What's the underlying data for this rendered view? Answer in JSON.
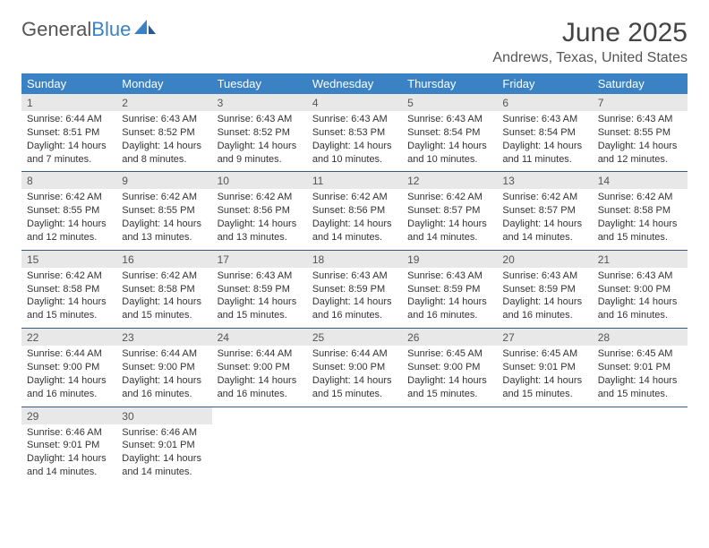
{
  "logo": {
    "text1": "General",
    "text2": "Blue"
  },
  "title": "June 2025",
  "location": "Andrews, Texas, United States",
  "colors": {
    "header_bg": "#3b82c4",
    "header_fg": "#ffffff",
    "daynum_bg": "#e8e8e8",
    "daynum_fg": "#555555",
    "sep": "#3b5a7a",
    "text": "#333333"
  },
  "dow": [
    "Sunday",
    "Monday",
    "Tuesday",
    "Wednesday",
    "Thursday",
    "Friday",
    "Saturday"
  ],
  "weeks": [
    {
      "days": [
        {
          "n": "1",
          "sr": "Sunrise: 6:44 AM",
          "ss": "Sunset: 8:51 PM",
          "d1": "Daylight: 14 hours",
          "d2": "and 7 minutes."
        },
        {
          "n": "2",
          "sr": "Sunrise: 6:43 AM",
          "ss": "Sunset: 8:52 PM",
          "d1": "Daylight: 14 hours",
          "d2": "and 8 minutes."
        },
        {
          "n": "3",
          "sr": "Sunrise: 6:43 AM",
          "ss": "Sunset: 8:52 PM",
          "d1": "Daylight: 14 hours",
          "d2": "and 9 minutes."
        },
        {
          "n": "4",
          "sr": "Sunrise: 6:43 AM",
          "ss": "Sunset: 8:53 PM",
          "d1": "Daylight: 14 hours",
          "d2": "and 10 minutes."
        },
        {
          "n": "5",
          "sr": "Sunrise: 6:43 AM",
          "ss": "Sunset: 8:54 PM",
          "d1": "Daylight: 14 hours",
          "d2": "and 10 minutes."
        },
        {
          "n": "6",
          "sr": "Sunrise: 6:43 AM",
          "ss": "Sunset: 8:54 PM",
          "d1": "Daylight: 14 hours",
          "d2": "and 11 minutes."
        },
        {
          "n": "7",
          "sr": "Sunrise: 6:43 AM",
          "ss": "Sunset: 8:55 PM",
          "d1": "Daylight: 14 hours",
          "d2": "and 12 minutes."
        }
      ]
    },
    {
      "days": [
        {
          "n": "8",
          "sr": "Sunrise: 6:42 AM",
          "ss": "Sunset: 8:55 PM",
          "d1": "Daylight: 14 hours",
          "d2": "and 12 minutes."
        },
        {
          "n": "9",
          "sr": "Sunrise: 6:42 AM",
          "ss": "Sunset: 8:55 PM",
          "d1": "Daylight: 14 hours",
          "d2": "and 13 minutes."
        },
        {
          "n": "10",
          "sr": "Sunrise: 6:42 AM",
          "ss": "Sunset: 8:56 PM",
          "d1": "Daylight: 14 hours",
          "d2": "and 13 minutes."
        },
        {
          "n": "11",
          "sr": "Sunrise: 6:42 AM",
          "ss": "Sunset: 8:56 PM",
          "d1": "Daylight: 14 hours",
          "d2": "and 14 minutes."
        },
        {
          "n": "12",
          "sr": "Sunrise: 6:42 AM",
          "ss": "Sunset: 8:57 PM",
          "d1": "Daylight: 14 hours",
          "d2": "and 14 minutes."
        },
        {
          "n": "13",
          "sr": "Sunrise: 6:42 AM",
          "ss": "Sunset: 8:57 PM",
          "d1": "Daylight: 14 hours",
          "d2": "and 14 minutes."
        },
        {
          "n": "14",
          "sr": "Sunrise: 6:42 AM",
          "ss": "Sunset: 8:58 PM",
          "d1": "Daylight: 14 hours",
          "d2": "and 15 minutes."
        }
      ]
    },
    {
      "days": [
        {
          "n": "15",
          "sr": "Sunrise: 6:42 AM",
          "ss": "Sunset: 8:58 PM",
          "d1": "Daylight: 14 hours",
          "d2": "and 15 minutes."
        },
        {
          "n": "16",
          "sr": "Sunrise: 6:42 AM",
          "ss": "Sunset: 8:58 PM",
          "d1": "Daylight: 14 hours",
          "d2": "and 15 minutes."
        },
        {
          "n": "17",
          "sr": "Sunrise: 6:43 AM",
          "ss": "Sunset: 8:59 PM",
          "d1": "Daylight: 14 hours",
          "d2": "and 15 minutes."
        },
        {
          "n": "18",
          "sr": "Sunrise: 6:43 AM",
          "ss": "Sunset: 8:59 PM",
          "d1": "Daylight: 14 hours",
          "d2": "and 16 minutes."
        },
        {
          "n": "19",
          "sr": "Sunrise: 6:43 AM",
          "ss": "Sunset: 8:59 PM",
          "d1": "Daylight: 14 hours",
          "d2": "and 16 minutes."
        },
        {
          "n": "20",
          "sr": "Sunrise: 6:43 AM",
          "ss": "Sunset: 8:59 PM",
          "d1": "Daylight: 14 hours",
          "d2": "and 16 minutes."
        },
        {
          "n": "21",
          "sr": "Sunrise: 6:43 AM",
          "ss": "Sunset: 9:00 PM",
          "d1": "Daylight: 14 hours",
          "d2": "and 16 minutes."
        }
      ]
    },
    {
      "days": [
        {
          "n": "22",
          "sr": "Sunrise: 6:44 AM",
          "ss": "Sunset: 9:00 PM",
          "d1": "Daylight: 14 hours",
          "d2": "and 16 minutes."
        },
        {
          "n": "23",
          "sr": "Sunrise: 6:44 AM",
          "ss": "Sunset: 9:00 PM",
          "d1": "Daylight: 14 hours",
          "d2": "and 16 minutes."
        },
        {
          "n": "24",
          "sr": "Sunrise: 6:44 AM",
          "ss": "Sunset: 9:00 PM",
          "d1": "Daylight: 14 hours",
          "d2": "and 16 minutes."
        },
        {
          "n": "25",
          "sr": "Sunrise: 6:44 AM",
          "ss": "Sunset: 9:00 PM",
          "d1": "Daylight: 14 hours",
          "d2": "and 15 minutes."
        },
        {
          "n": "26",
          "sr": "Sunrise: 6:45 AM",
          "ss": "Sunset: 9:00 PM",
          "d1": "Daylight: 14 hours",
          "d2": "and 15 minutes."
        },
        {
          "n": "27",
          "sr": "Sunrise: 6:45 AM",
          "ss": "Sunset: 9:01 PM",
          "d1": "Daylight: 14 hours",
          "d2": "and 15 minutes."
        },
        {
          "n": "28",
          "sr": "Sunrise: 6:45 AM",
          "ss": "Sunset: 9:01 PM",
          "d1": "Daylight: 14 hours",
          "d2": "and 15 minutes."
        }
      ]
    },
    {
      "days": [
        {
          "n": "29",
          "sr": "Sunrise: 6:46 AM",
          "ss": "Sunset: 9:01 PM",
          "d1": "Daylight: 14 hours",
          "d2": "and 14 minutes."
        },
        {
          "n": "30",
          "sr": "Sunrise: 6:46 AM",
          "ss": "Sunset: 9:01 PM",
          "d1": "Daylight: 14 hours",
          "d2": "and 14 minutes."
        },
        {
          "empty": true
        },
        {
          "empty": true
        },
        {
          "empty": true
        },
        {
          "empty": true
        },
        {
          "empty": true
        }
      ]
    }
  ]
}
